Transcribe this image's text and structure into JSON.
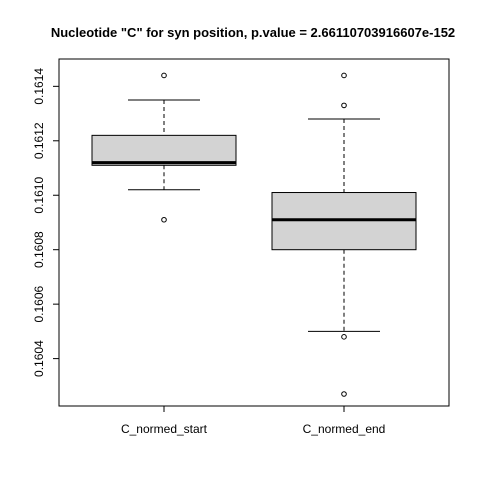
{
  "chart_data": {
    "type": "boxplot",
    "title": "Nucleotide \"C\" for syn position, p.value = 2.66110703916607e-152",
    "xlabel": "",
    "ylabel": "",
    "ylim": [
      0.16027,
      0.16146
    ],
    "y_ticks": [
      0.1604,
      0.1606,
      0.1608,
      0.161,
      0.1612,
      0.1614
    ],
    "y_tick_labels": [
      "0.1604",
      "0.1606",
      "0.1608",
      "0.1610",
      "0.1612",
      "0.1614"
    ],
    "grid": false,
    "legend": "none",
    "categories": [
      "C_normed_start",
      "C_normed_end"
    ],
    "boxes": [
      {
        "name": "C_normed_start",
        "whisker_low": 0.16102,
        "q1": 0.16111,
        "median": 0.16112,
        "q3": 0.16122,
        "whisker_high": 0.16135,
        "outliers": [
          0.16144,
          0.16091
        ]
      },
      {
        "name": "C_normed_end",
        "whisker_low": 0.1605,
        "q1": 0.1608,
        "median": 0.16091,
        "q3": 0.16101,
        "whisker_high": 0.16128,
        "outliers": [
          0.16144,
          0.16133,
          0.16048,
          0.16027
        ]
      }
    ],
    "colors": {
      "box_fill": "#d3d3d3",
      "stroke": "#000000",
      "background": "#ffffff"
    }
  }
}
